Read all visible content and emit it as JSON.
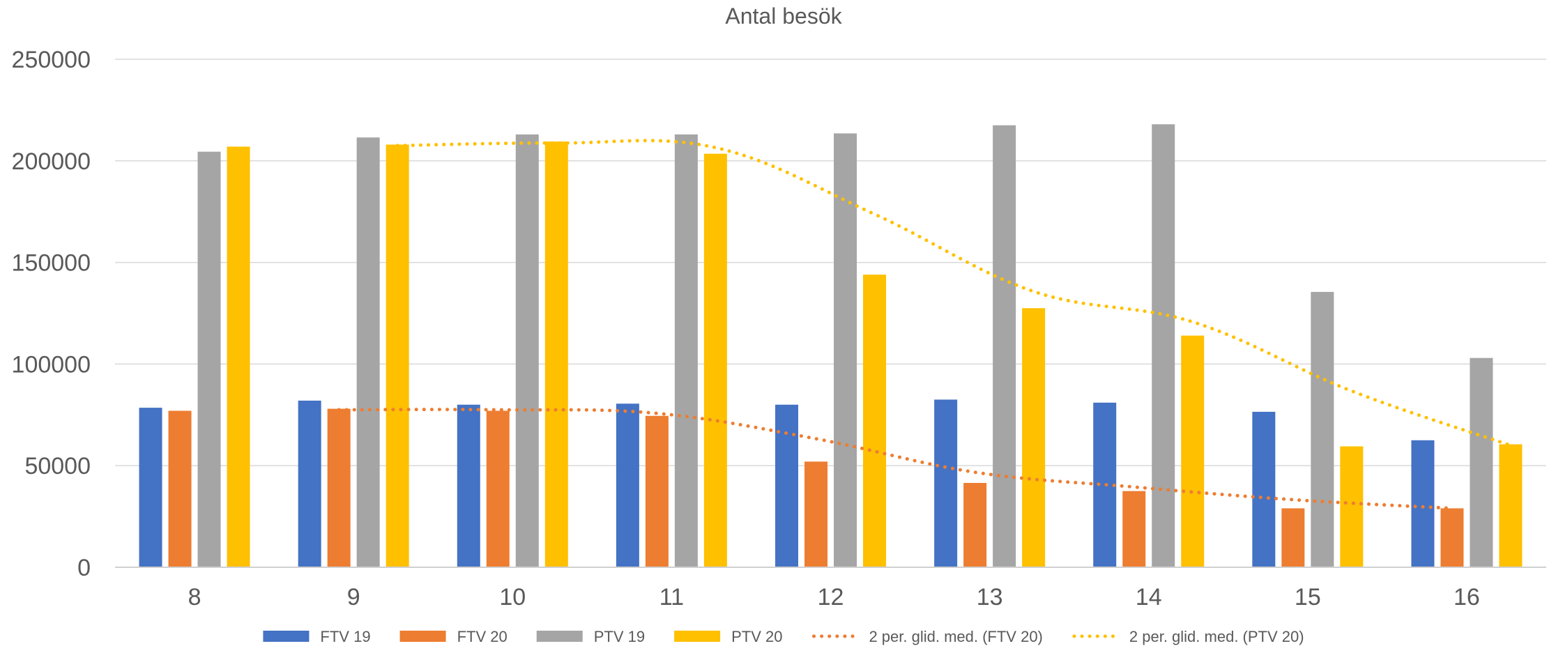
{
  "chart_data": {
    "type": "bar",
    "title": "Antal besök",
    "xlabel": "",
    "ylabel": "",
    "categories": [
      "8",
      "9",
      "10",
      "11",
      "12",
      "13",
      "14",
      "15",
      "16"
    ],
    "ylim": [
      0,
      250000
    ],
    "yticks": [
      "0",
      "50000",
      "100000",
      "150000",
      "200000",
      "250000"
    ],
    "grid": true,
    "legend_position": "bottom",
    "series": [
      {
        "name": "FTV 19",
        "kind": "bar",
        "color": "#4472C4",
        "values": [
          78500,
          82000,
          80000,
          80500,
          80000,
          82500,
          81000,
          76500,
          62500
        ]
      },
      {
        "name": "FTV 20",
        "kind": "bar",
        "color": "#ED7D31",
        "values": [
          77000,
          78000,
          77000,
          74500,
          52000,
          41500,
          37500,
          29000,
          29000
        ]
      },
      {
        "name": "PTV 19",
        "kind": "bar",
        "color": "#A5A5A5",
        "values": [
          204500,
          211500,
          213000,
          213000,
          213500,
          217500,
          218000,
          135500,
          103000
        ]
      },
      {
        "name": "PTV 20",
        "kind": "bar",
        "color": "#FFC000",
        "values": [
          207000,
          208000,
          209500,
          203500,
          144000,
          127500,
          114000,
          59500,
          60500
        ]
      }
    ],
    "trendlines": [
      {
        "name": "2 per. glid. med. (FTV 20)",
        "kind": "moving-average",
        "period": 2,
        "source": "FTV 20",
        "color": "#ED7D31",
        "style": "dotted"
      },
      {
        "name": "2 per. glid. med. (PTV 20)",
        "kind": "moving-average",
        "period": 2,
        "source": "PTV 20",
        "color": "#FFC000",
        "style": "dotted"
      }
    ]
  }
}
